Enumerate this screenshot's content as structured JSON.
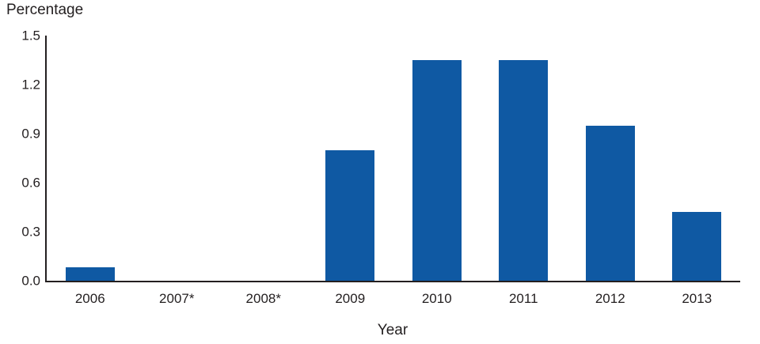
{
  "chart": {
    "y_axis_title": "Percentage",
    "x_axis_title": "Year"
  },
  "chart_data": {
    "type": "bar",
    "title": "",
    "categories": [
      "2006",
      "2007*",
      "2008*",
      "2009",
      "2010",
      "2011",
      "2012",
      "2013"
    ],
    "values": [
      0.08,
      0,
      0,
      0.8,
      1.35,
      1.35,
      0.95,
      0.42
    ],
    "xlabel": "Year",
    "ylabel": "Percentage",
    "ylim": [
      0,
      1.5
    ],
    "yticks": [
      0.0,
      0.3,
      0.6,
      0.9,
      1.2,
      1.5
    ],
    "ytick_labels": [
      "0.0",
      "0.3",
      "0.6",
      "0.9",
      "1.2",
      "1.5"
    ],
    "grid": false,
    "legend": "none",
    "bar_color": "#0f59a3",
    "axis_color": "#231f20",
    "background_color": "#ffffff"
  }
}
